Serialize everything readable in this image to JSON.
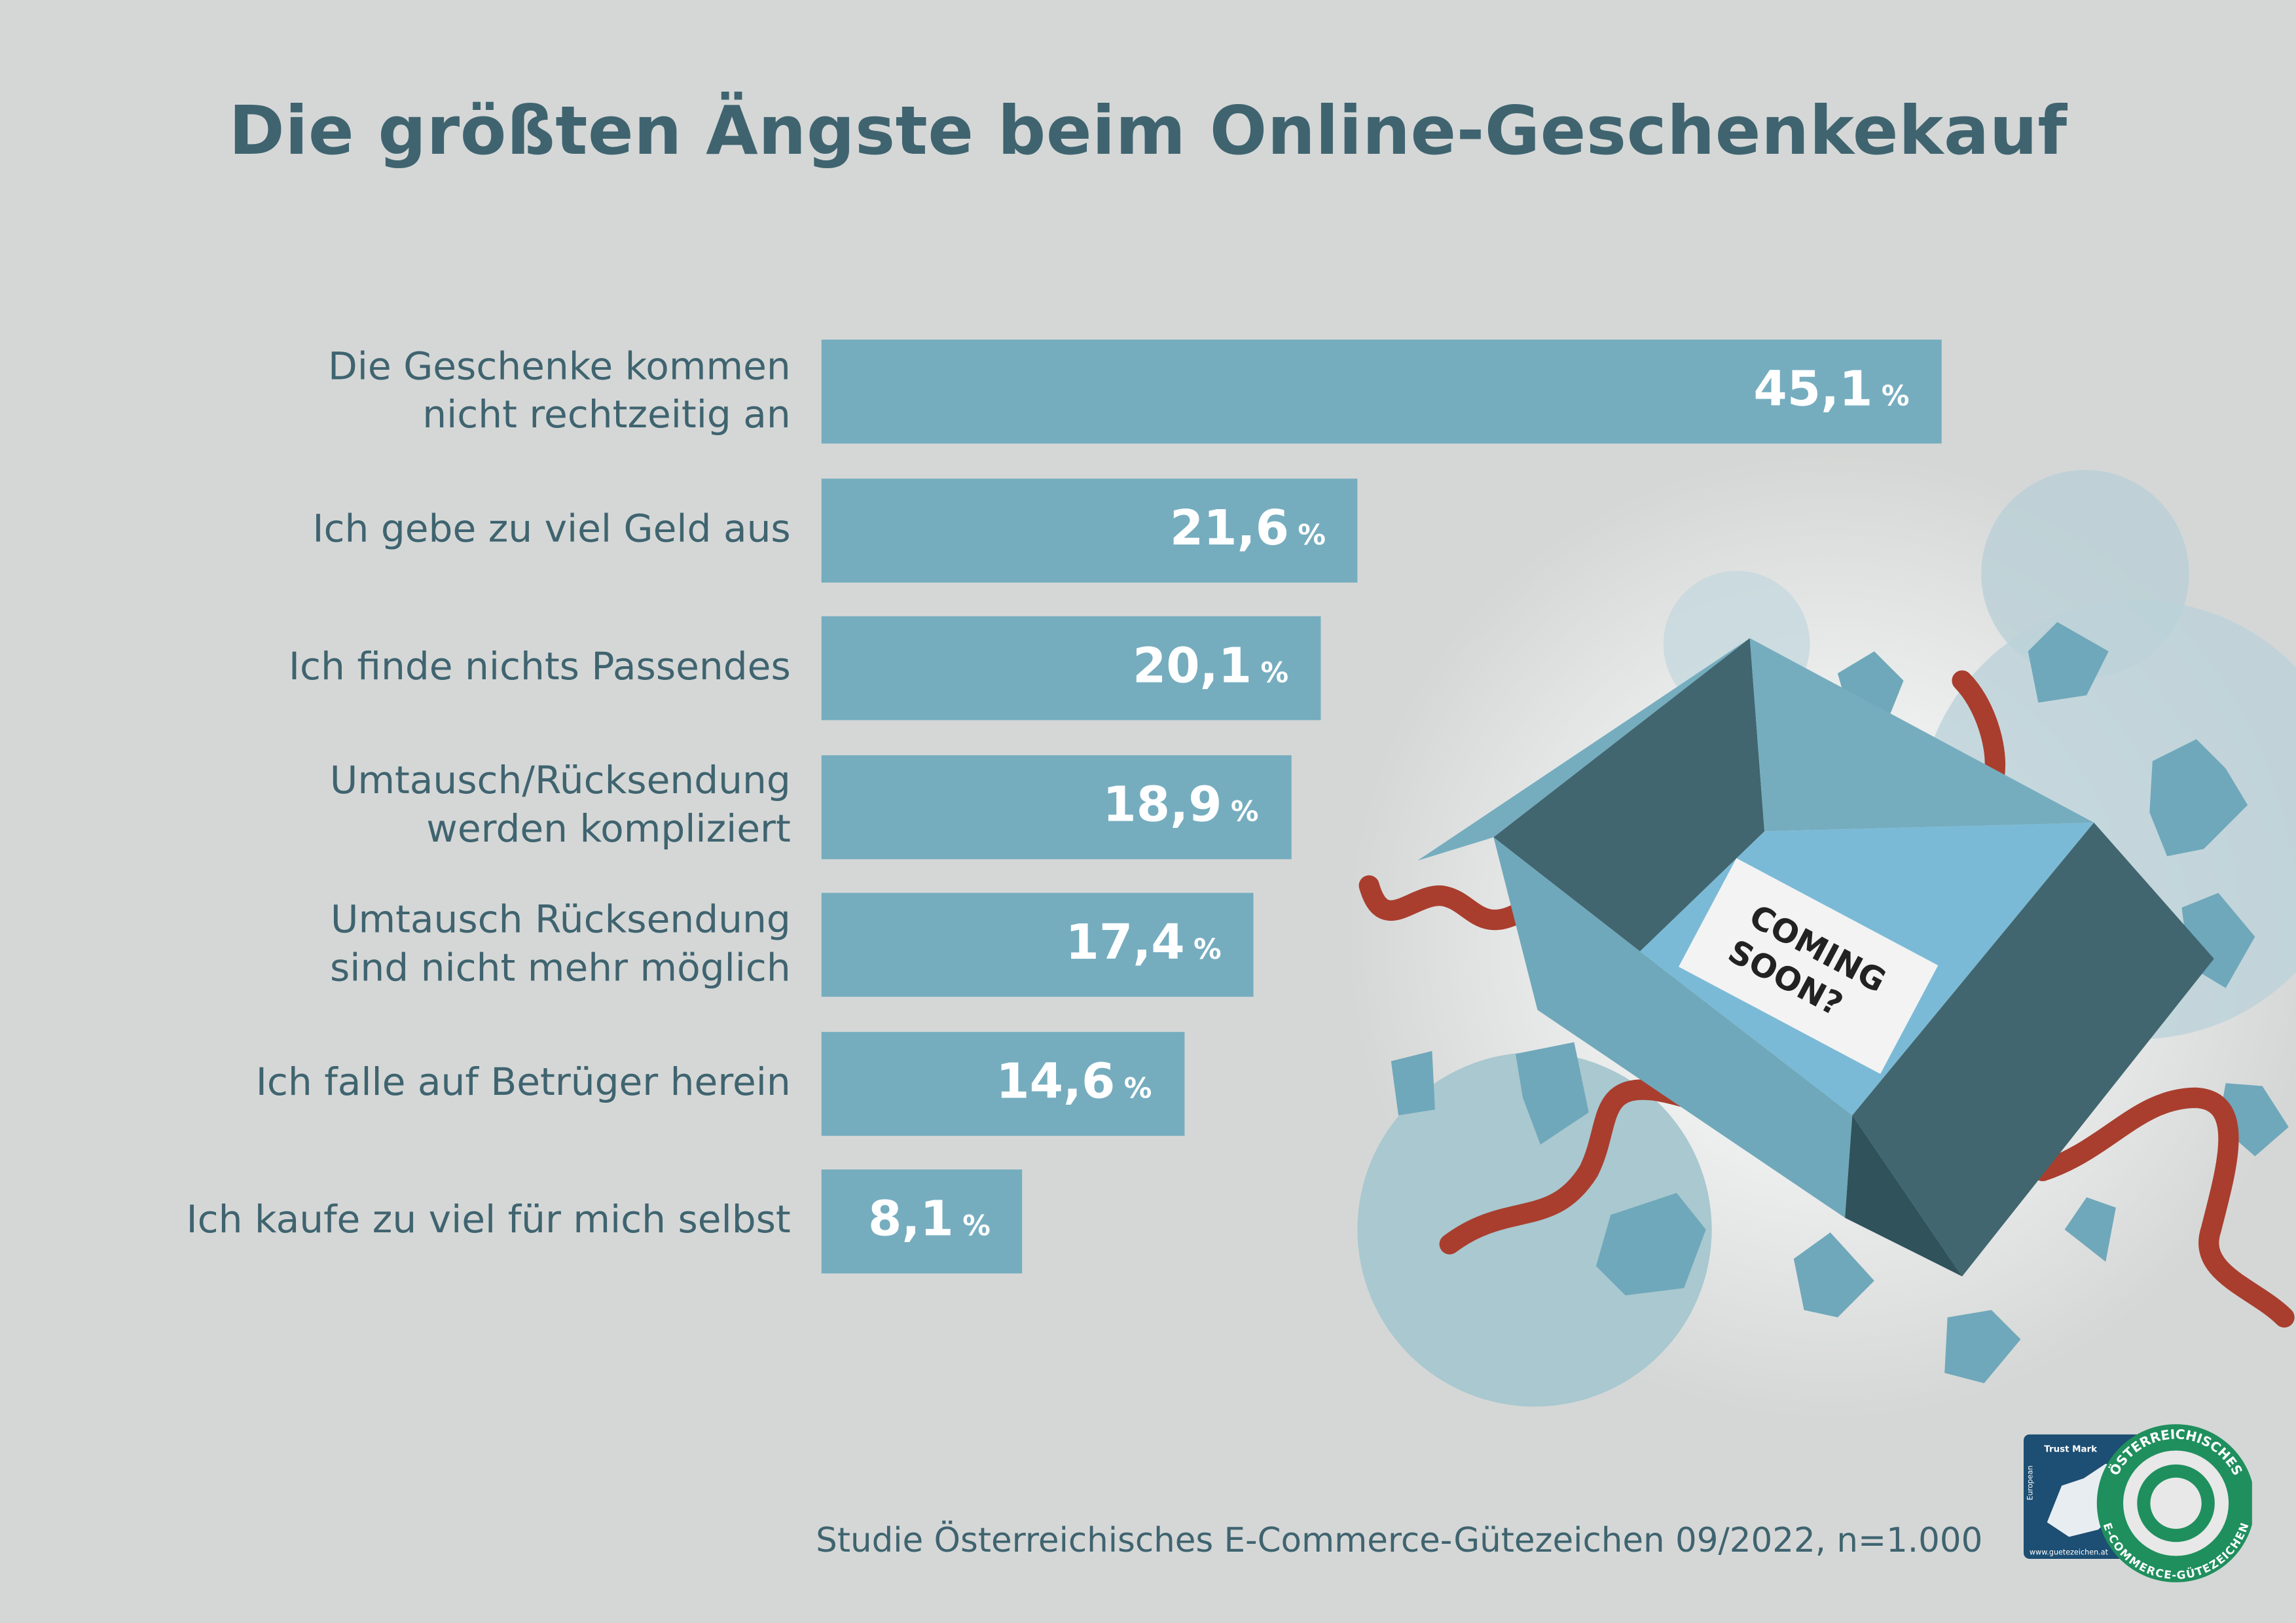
{
  "title": "Die größten Ängste beim Online-Geschenkekauf",
  "chart_data": {
    "type": "bar",
    "orientation": "horizontal",
    "title": "Die größten Ängste beim Online-Geschenkekauf",
    "categories": [
      [
        "Die Geschenke kommen",
        "nicht rechtzeitig an"
      ],
      [
        "Ich gebe zu viel Geld aus"
      ],
      [
        "Ich finde nichts Passendes"
      ],
      [
        "Umtausch/Rücksendung",
        "werden kompliziert"
      ],
      [
        "Umtausch Rücksendung",
        "sind nicht mehr möglich"
      ],
      [
        "Ich falle auf Betrüger herein"
      ],
      [
        "Ich kaufe zu viel für mich selbst"
      ]
    ],
    "values": [
      45.1,
      21.6,
      20.1,
      18.9,
      17.4,
      14.6,
      8.1
    ],
    "value_labels": [
      "45,1",
      "21,6",
      "20,1",
      "18,9",
      "17,4",
      "14,6",
      "8,1"
    ],
    "unit": "%",
    "grid": false,
    "bar_color": "#75adbf"
  },
  "illustration": {
    "note_text": [
      "COMING",
      "SOON?"
    ],
    "ribbon_color": "#a93e2e",
    "box_dark": "#41666f",
    "box_light": "#75adbf"
  },
  "source": "Studie Österreichisches E-Commerce-Gütezeichen 09/2022, n=1.000",
  "logo": {
    "european": "European",
    "trust_mark": "Trust Mark",
    "url": "www.guetezeichen.at",
    "ring_top": "ÖSTERREICHISCHES",
    "ring_bottom": "E-COMMERCE-GÜTEZEICHEN"
  },
  "colors": {
    "background": "#d5d7d6",
    "title": "#3f6470",
    "logo_blue": "#1d4e73",
    "logo_green": "#1f8f5e"
  }
}
